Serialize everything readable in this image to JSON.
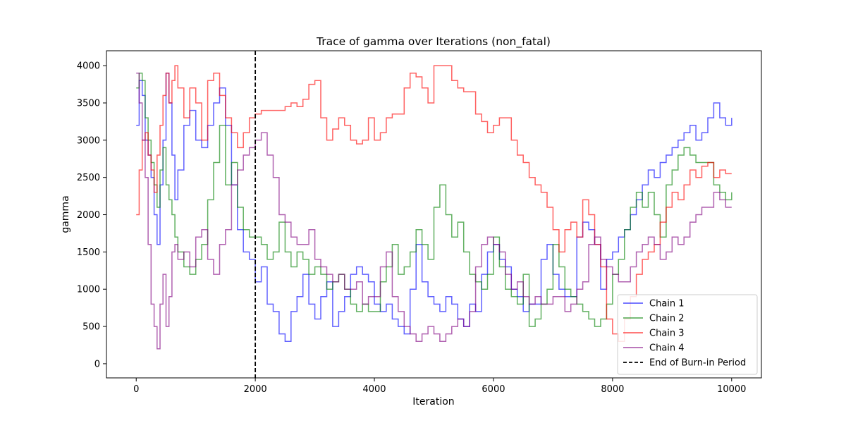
{
  "chart_data": {
    "type": "line",
    "title": "Trace of gamma over Iterations (non_fatal)",
    "xlabel": "Iteration",
    "ylabel": "gamma",
    "xlim": [
      -500,
      10500
    ],
    "ylim": [
      -190,
      4200
    ],
    "xticks": [
      0,
      2000,
      4000,
      6000,
      8000,
      10000
    ],
    "xtick_labels": [
      "0",
      "2000",
      "4000",
      "6000",
      "8000",
      "10000"
    ],
    "yticks": [
      0,
      500,
      1000,
      1500,
      2000,
      2500,
      3000,
      3500,
      4000
    ],
    "ytick_labels": [
      "0",
      "500",
      "1000",
      "1500",
      "2000",
      "2500",
      "3000",
      "3500",
      "4000"
    ],
    "grid": false,
    "legend": "lower-right",
    "burn_in": {
      "x": 2000,
      "label": "End of Burn-in Period",
      "color": "#000000"
    },
    "series": [
      {
        "name": "Chain 1",
        "color": "#0000ff",
        "x": [
          0,
          50,
          100,
          150,
          200,
          250,
          300,
          350,
          400,
          450,
          500,
          550,
          600,
          650,
          700,
          800,
          900,
          1000,
          1100,
          1200,
          1300,
          1400,
          1500,
          1600,
          1700,
          1800,
          1900,
          2000,
          2100,
          2200,
          2300,
          2400,
          2500,
          2600,
          2700,
          2800,
          2900,
          3000,
          3100,
          3200,
          3300,
          3400,
          3500,
          3600,
          3700,
          3800,
          3900,
          4000,
          4100,
          4200,
          4300,
          4400,
          4500,
          4600,
          4700,
          4800,
          4900,
          5000,
          5100,
          5200,
          5300,
          5400,
          5500,
          5600,
          5700,
          5800,
          5900,
          6000,
          6100,
          6200,
          6300,
          6400,
          6500,
          6600,
          6700,
          6800,
          6900,
          7000,
          7100,
          7200,
          7300,
          7400,
          7500,
          7600,
          7700,
          7800,
          7900,
          8000,
          8100,
          8200,
          8300,
          8400,
          8500,
          8600,
          8700,
          8800,
          8900,
          9000,
          9100,
          9200,
          9300,
          9400,
          9500,
          9600,
          9700,
          9800,
          9900,
          10000
        ],
        "y": [
          3200,
          3800,
          3600,
          3000,
          2800,
          2500,
          2000,
          1600,
          2400,
          3000,
          3900,
          3500,
          2800,
          2200,
          2600,
          3200,
          3400,
          3000,
          2900,
          3200,
          3500,
          3700,
          3200,
          2400,
          1800,
          1500,
          1400,
          1100,
          1300,
          800,
          700,
          400,
          300,
          700,
          900,
          1200,
          800,
          600,
          900,
          1100,
          500,
          700,
          900,
          1200,
          1300,
          1200,
          1100,
          800,
          700,
          800,
          600,
          500,
          400,
          1000,
          1600,
          1100,
          900,
          800,
          700,
          900,
          800,
          600,
          500,
          800,
          700,
          1200,
          1500,
          1600,
          1400,
          1300,
          1000,
          900,
          700,
          800,
          800,
          1400,
          1600,
          1200,
          1000,
          900,
          900,
          1700,
          1900,
          1800,
          1600,
          1000,
          1400,
          1500,
          1700,
          1800,
          2000,
          2200,
          2400,
          2600,
          2500,
          2700,
          2800,
          2900,
          3000,
          3100,
          3200,
          3000,
          3100,
          3300,
          3500,
          3300,
          3200,
          3300
        ]
      },
      {
        "name": "Chain 2",
        "color": "#008000",
        "x": [
          0,
          50,
          100,
          150,
          200,
          250,
          300,
          350,
          400,
          450,
          500,
          550,
          600,
          650,
          700,
          800,
          900,
          1000,
          1100,
          1200,
          1300,
          1400,
          1500,
          1600,
          1700,
          1800,
          1900,
          2000,
          2100,
          2200,
          2300,
          2400,
          2500,
          2600,
          2700,
          2800,
          2900,
          3000,
          3100,
          3200,
          3300,
          3400,
          3500,
          3600,
          3700,
          3800,
          3900,
          4000,
          4100,
          4200,
          4300,
          4400,
          4500,
          4600,
          4700,
          4800,
          4900,
          5000,
          5100,
          5200,
          5300,
          5400,
          5500,
          5600,
          5700,
          5800,
          5900,
          6000,
          6100,
          6200,
          6300,
          6400,
          6500,
          6600,
          6700,
          6800,
          6900,
          7000,
          7100,
          7200,
          7300,
          7400,
          7500,
          7600,
          7700,
          7800,
          7900,
          8000,
          8100,
          8200,
          8300,
          8400,
          8500,
          8600,
          8700,
          8800,
          8900,
          9000,
          9100,
          9200,
          9300,
          9400,
          9500,
          9600,
          9700,
          9800,
          9900,
          10000
        ],
        "y": [
          3700,
          3900,
          3800,
          3300,
          3000,
          2700,
          2400,
          2100,
          2600,
          2900,
          2400,
          2200,
          2000,
          1700,
          1500,
          1300,
          1200,
          1400,
          1600,
          2200,
          2700,
          3200,
          2400,
          2700,
          2100,
          1800,
          1700,
          1700,
          1600,
          1400,
          1500,
          1900,
          1500,
          1300,
          1500,
          1400,
          1200,
          1300,
          1200,
          1000,
          1100,
          1200,
          1000,
          800,
          700,
          800,
          700,
          700,
          1100,
          1300,
          1600,
          1200,
          1300,
          1500,
          1800,
          1600,
          1400,
          2100,
          2400,
          2000,
          1700,
          1900,
          1500,
          1200,
          1100,
          1000,
          1200,
          1700,
          1300,
          1000,
          900,
          800,
          1200,
          500,
          600,
          800,
          1000,
          1600,
          1300,
          1000,
          900,
          800,
          700,
          600,
          500,
          600,
          800,
          1200,
          1400,
          1800,
          2100,
          2300,
          2100,
          2300,
          2000,
          1700,
          2400,
          2600,
          2800,
          2900,
          2800,
          2700,
          2700,
          2700,
          2400,
          2300,
          2200,
          2300
        ]
      },
      {
        "name": "Chain 3",
        "color": "#ff0000",
        "x": [
          0,
          50,
          100,
          150,
          200,
          250,
          300,
          350,
          400,
          450,
          500,
          550,
          600,
          650,
          700,
          800,
          900,
          1000,
          1100,
          1200,
          1300,
          1400,
          1500,
          1600,
          1700,
          1800,
          1900,
          2000,
          2100,
          2200,
          2300,
          2400,
          2500,
          2600,
          2700,
          2800,
          2900,
          3000,
          3100,
          3200,
          3300,
          3400,
          3500,
          3600,
          3700,
          3800,
          3900,
          4000,
          4100,
          4200,
          4300,
          4400,
          4500,
          4600,
          4700,
          4800,
          4900,
          5000,
          5100,
          5200,
          5300,
          5400,
          5500,
          5600,
          5700,
          5800,
          5900,
          6000,
          6100,
          6200,
          6300,
          6400,
          6500,
          6600,
          6700,
          6800,
          6900,
          7000,
          7100,
          7200,
          7300,
          7400,
          7500,
          7600,
          7700,
          7800,
          7900,
          8000,
          8100,
          8200,
          8300,
          8400,
          8500,
          8600,
          8700,
          8800,
          8900,
          9000,
          9100,
          9200,
          9300,
          9400,
          9500,
          9600,
          9700,
          9800,
          9900,
          10000
        ],
        "y": [
          2000,
          2600,
          3000,
          3100,
          2800,
          2600,
          2300,
          2800,
          3200,
          3600,
          3900,
          3500,
          3800,
          4000,
          3700,
          3300,
          3700,
          3500,
          3000,
          3800,
          3900,
          3600,
          3300,
          3100,
          2900,
          3100,
          3300,
          3350,
          3400,
          3400,
          3400,
          3400,
          3450,
          3500,
          3450,
          3550,
          3750,
          3800,
          3300,
          3000,
          3150,
          3300,
          3200,
          3000,
          2950,
          3000,
          3300,
          3000,
          3100,
          3300,
          3350,
          3350,
          3700,
          3900,
          3850,
          3700,
          3500,
          4000,
          4000,
          4000,
          3800,
          3700,
          3650,
          3650,
          3350,
          3250,
          3100,
          3200,
          3300,
          3300,
          3000,
          2800,
          2700,
          2500,
          2400,
          2300,
          2100,
          1800,
          1500,
          1800,
          1900,
          1700,
          2200,
          2000,
          1600,
          1300,
          600,
          400,
          300,
          600,
          900,
          1200,
          1400,
          1500,
          1600,
          1900,
          2100,
          2300,
          2200,
          2400,
          2600,
          2500,
          2650,
          2700,
          2500,
          2600,
          2550,
          2550
        ]
      },
      {
        "name": "Chain 4",
        "color": "#800080",
        "x": [
          0,
          50,
          100,
          150,
          200,
          250,
          300,
          350,
          400,
          450,
          500,
          550,
          600,
          650,
          700,
          800,
          900,
          1000,
          1100,
          1200,
          1300,
          1400,
          1500,
          1600,
          1700,
          1800,
          1900,
          2000,
          2100,
          2200,
          2300,
          2400,
          2500,
          2600,
          2700,
          2800,
          2900,
          3000,
          3100,
          3200,
          3300,
          3400,
          3500,
          3600,
          3700,
          3800,
          3900,
          4000,
          4100,
          4200,
          4300,
          4400,
          4500,
          4600,
          4700,
          4800,
          4900,
          5000,
          5100,
          5200,
          5300,
          5400,
          5500,
          5600,
          5700,
          5800,
          5900,
          6000,
          6100,
          6200,
          6300,
          6400,
          6500,
          6600,
          6700,
          6800,
          6900,
          7000,
          7100,
          7200,
          7300,
          7400,
          7500,
          7600,
          7700,
          7800,
          7900,
          8000,
          8100,
          8200,
          8300,
          8400,
          8500,
          8600,
          8700,
          8800,
          8900,
          9000,
          9100,
          9200,
          9300,
          9400,
          9500,
          9600,
          9700,
          9800,
          9900,
          10000
        ],
        "y": [
          3900,
          3500,
          3000,
          2500,
          1600,
          800,
          500,
          200,
          800,
          1200,
          500,
          900,
          1500,
          1600,
          1400,
          1500,
          1300,
          1700,
          1800,
          1400,
          1200,
          1600,
          1800,
          2400,
          2600,
          2800,
          2900,
          3000,
          3100,
          2800,
          2500,
          2000,
          1900,
          1700,
          1600,
          1600,
          1800,
          1400,
          1300,
          1200,
          1100,
          1200,
          1000,
          1000,
          1100,
          800,
          900,
          900,
          1300,
          1500,
          900,
          700,
          500,
          400,
          300,
          400,
          500,
          400,
          300,
          400,
          500,
          600,
          500,
          700,
          1300,
          1600,
          1700,
          1600,
          1500,
          1200,
          1000,
          1100,
          900,
          800,
          900,
          800,
          800,
          900,
          900,
          700,
          800,
          1000,
          1100,
          1600,
          1700,
          1400,
          1300,
          1200,
          1100,
          1100,
          1300,
          1500,
          1600,
          1700,
          1600,
          1400,
          1500,
          1700,
          1600,
          1700,
          1900,
          2000,
          2100,
          2100,
          2300,
          2200,
          2100,
          2100
        ]
      }
    ]
  }
}
